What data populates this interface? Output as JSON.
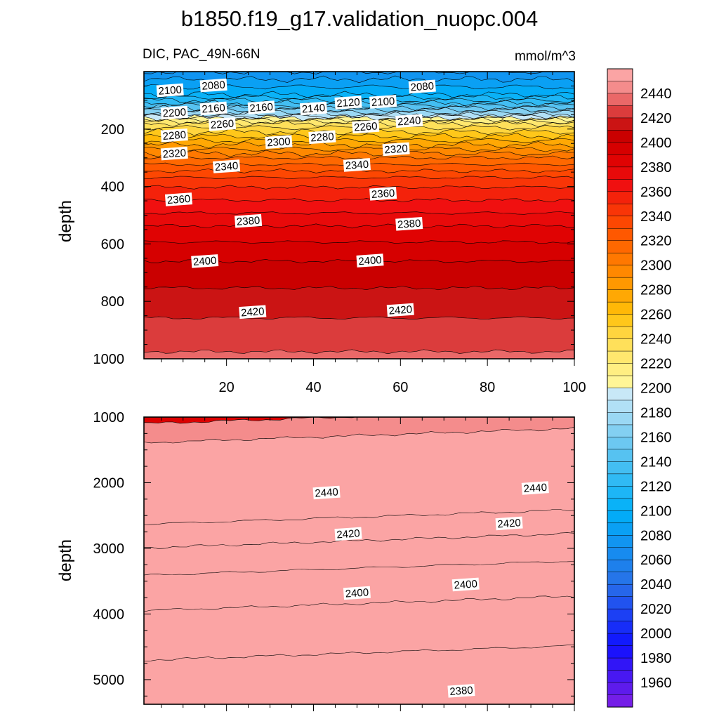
{
  "title": "b1850.f19_g17.validation_nuopc.004",
  "subtitle_left": "DIC, PAC_49N-66N",
  "subtitle_right": "mmol/m^3",
  "chart_data": [
    {
      "type": "contour",
      "panel": "upper",
      "ylabel": "depth",
      "xlim": [
        1,
        100
      ],
      "ylim": [
        1000,
        0
      ],
      "x_ticks": [
        20,
        40,
        60,
        80,
        100
      ],
      "y_ticks": [
        200,
        400,
        600,
        800,
        1000
      ],
      "levels": [
        {
          "depth": 0,
          "value": 2070
        },
        {
          "depth": 80,
          "value": 2100
        },
        {
          "depth": 110,
          "value": 2130
        },
        {
          "depth": 150,
          "value": 2180
        },
        {
          "depth": 180,
          "value": 2230
        },
        {
          "depth": 240,
          "value": 2270
        },
        {
          "depth": 300,
          "value": 2310
        },
        {
          "depth": 380,
          "value": 2345
        },
        {
          "depth": 470,
          "value": 2365
        },
        {
          "depth": 560,
          "value": 2385
        },
        {
          "depth": 660,
          "value": 2400
        },
        {
          "depth": 800,
          "value": 2415
        },
        {
          "depth": 950,
          "value": 2428
        },
        {
          "depth": 1000,
          "value": 2432
        }
      ],
      "contour_labels": [
        {
          "text": "2100",
          "x": 7,
          "depth": 65
        },
        {
          "text": "2080",
          "x": 17,
          "depth": 48
        },
        {
          "text": "2080",
          "x": 65,
          "depth": 52
        },
        {
          "text": "2200",
          "x": 8,
          "depth": 143
        },
        {
          "text": "2160",
          "x": 17,
          "depth": 128
        },
        {
          "text": "2160",
          "x": 28,
          "depth": 125
        },
        {
          "text": "2140",
          "x": 40,
          "depth": 128
        },
        {
          "text": "2120",
          "x": 48,
          "depth": 108
        },
        {
          "text": "2100",
          "x": 56,
          "depth": 105
        },
        {
          "text": "2260",
          "x": 19,
          "depth": 183
        },
        {
          "text": "2240",
          "x": 62,
          "depth": 172
        },
        {
          "text": "2280",
          "x": 8,
          "depth": 222
        },
        {
          "text": "2300",
          "x": 32,
          "depth": 245
        },
        {
          "text": "2280",
          "x": 42,
          "depth": 228
        },
        {
          "text": "2260",
          "x": 52,
          "depth": 192
        },
        {
          "text": "2320",
          "x": 8,
          "depth": 285
        },
        {
          "text": "2320",
          "x": 59,
          "depth": 270
        },
        {
          "text": "2340",
          "x": 20,
          "depth": 330
        },
        {
          "text": "2340",
          "x": 50,
          "depth": 325
        },
        {
          "text": "2360",
          "x": 9,
          "depth": 445
        },
        {
          "text": "2360",
          "x": 56,
          "depth": 425
        },
        {
          "text": "2380",
          "x": 25,
          "depth": 520
        },
        {
          "text": "2380",
          "x": 62,
          "depth": 530
        },
        {
          "text": "2400",
          "x": 15,
          "depth": 660
        },
        {
          "text": "2400",
          "x": 53,
          "depth": 658
        },
        {
          "text": "2420",
          "x": 26,
          "depth": 837
        },
        {
          "text": "2420",
          "x": 60,
          "depth": 830
        }
      ]
    },
    {
      "type": "contour",
      "panel": "lower",
      "ylabel": "depth",
      "xlim": [
        1,
        100
      ],
      "ylim": [
        5375,
        1000
      ],
      "y_ticks": [
        1000,
        2000,
        3000,
        4000,
        5000
      ],
      "levels": [
        {
          "depth": 1000,
          "value": 2432
        },
        {
          "depth": 1100,
          "value": 2440
        },
        {
          "depth": 1450,
          "value": 2452
        },
        {
          "depth": 2000,
          "value": 2446
        },
        {
          "depth": 2400,
          "value": 2437
        },
        {
          "depth": 2800,
          "value": 2425
        },
        {
          "depth": 3300,
          "value": 2412
        },
        {
          "depth": 3800,
          "value": 2403
        },
        {
          "depth": 4300,
          "value": 2393
        },
        {
          "depth": 5375,
          "value": 2385
        }
      ],
      "contour_labels": [
        {
          "text": "2440",
          "x": 43,
          "depth": 2150
        },
        {
          "text": "2440",
          "x": 91,
          "depth": 2080
        },
        {
          "text": "2420",
          "x": 48,
          "depth": 2780
        },
        {
          "text": "2420",
          "x": 85,
          "depth": 2620
        },
        {
          "text": "2400",
          "x": 50,
          "depth": 3680
        },
        {
          "text": "2400",
          "x": 75,
          "depth": 3550
        },
        {
          "text": "2380",
          "x": 74,
          "depth": 5170
        }
      ]
    }
  ],
  "colorbar": {
    "labels": [
      "2440",
      "2420",
      "2400",
      "2380",
      "2360",
      "2340",
      "2320",
      "2300",
      "2280",
      "2260",
      "2240",
      "2220",
      "2200",
      "2180",
      "2160",
      "2140",
      "2120",
      "2100",
      "2080",
      "2060",
      "2040",
      "2020",
      "2000",
      "1980",
      "1960"
    ],
    "label_levels": [
      2440,
      2420,
      2400,
      2380,
      2360,
      2340,
      2320,
      2300,
      2280,
      2260,
      2240,
      2220,
      2200,
      2180,
      2160,
      2140,
      2120,
      2100,
      2080,
      2060,
      2040,
      2020,
      2000,
      1980,
      1960
    ],
    "min": 1940,
    "max": 2460,
    "step": 10
  }
}
